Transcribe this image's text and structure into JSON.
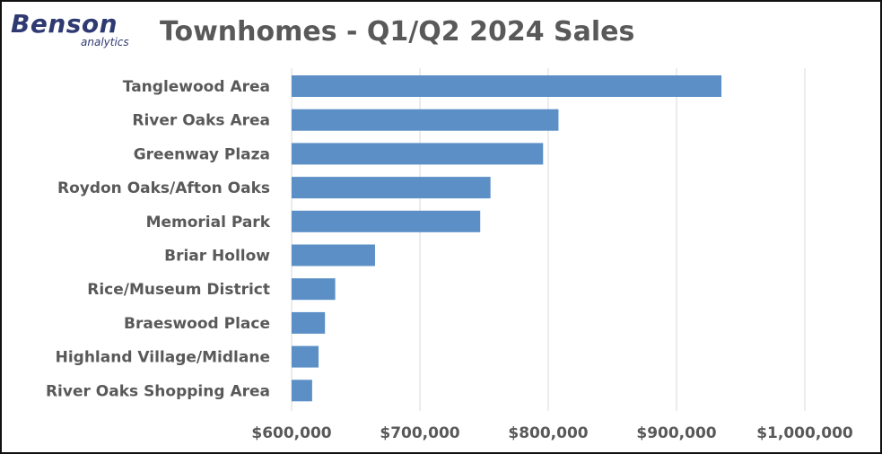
{
  "logo": {
    "word": "Benson",
    "sub": "analytics"
  },
  "colors": {
    "bar": "#5b8fc6",
    "grid": "#d9d9d9",
    "text": "#595959",
    "brand": "#2f3a73"
  },
  "chart_data": {
    "type": "bar",
    "orientation": "horizontal",
    "title": "Townhomes - Q1/Q2 2024 Sales",
    "categories": [
      "Tanglewood Area",
      "River Oaks Area",
      "Greenway Plaza",
      "Roydon Oaks/Afton Oaks",
      "Memorial Park",
      "Briar Hollow",
      "Rice/Museum District",
      "Braeswood Place",
      "Highland Village/Midlane",
      "River Oaks Shopping Area"
    ],
    "values": [
      935000,
      808000,
      796000,
      755000,
      747000,
      665000,
      634000,
      626000,
      621000,
      616000
    ],
    "xlim": [
      600000,
      1000000
    ],
    "ticks": [
      {
        "value": 600000,
        "label": "$600,000"
      },
      {
        "value": 700000,
        "label": "$700,000"
      },
      {
        "value": 800000,
        "label": "$800,000"
      },
      {
        "value": 900000,
        "label": "$900,000"
      },
      {
        "value": 1000000,
        "label": "$1,000,000"
      }
    ],
    "grid": true,
    "legend": "none"
  }
}
